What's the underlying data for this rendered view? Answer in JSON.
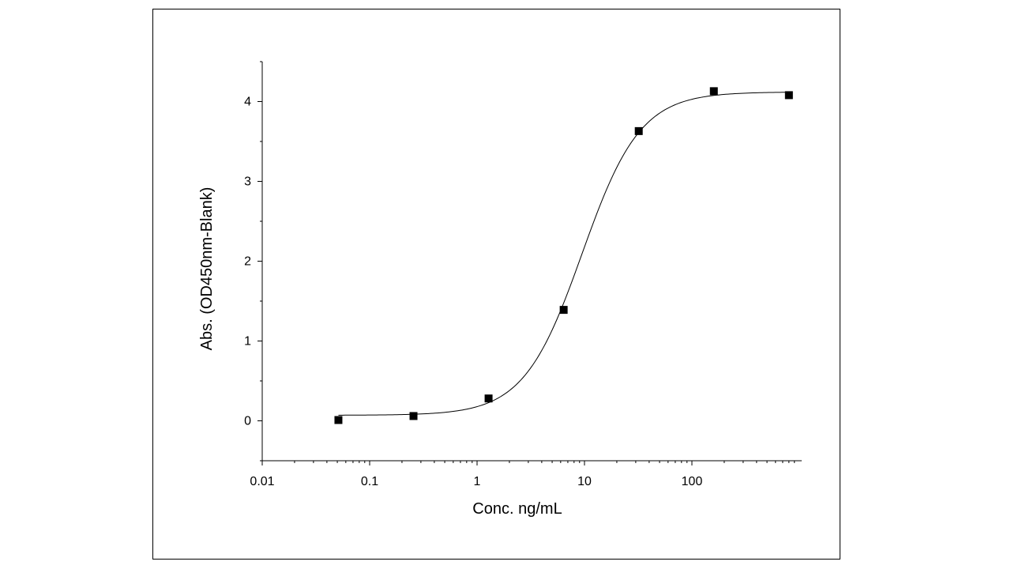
{
  "chart_data": {
    "type": "scatter",
    "xlabel": "Conc. ng/mL",
    "ylabel": "Abs. (OD450nm-Blank)",
    "xscale": "log",
    "xlim": [
      0.01,
      1000
    ],
    "ylim": [
      -0.5,
      4.5
    ],
    "xticks": [
      {
        "value": 0.01,
        "label": "0.01"
      },
      {
        "value": 0.1,
        "label": "0.1"
      },
      {
        "value": 1,
        "label": "1"
      },
      {
        "value": 10,
        "label": "10"
      },
      {
        "value": 100,
        "label": "100"
      }
    ],
    "yticks": [
      {
        "value": 0,
        "label": "0"
      },
      {
        "value": 1,
        "label": "1"
      },
      {
        "value": 2,
        "label": "2"
      },
      {
        "value": 3,
        "label": "3"
      },
      {
        "value": 4,
        "label": "4"
      }
    ],
    "grid": false,
    "marker": "square",
    "points": [
      {
        "x": 0.0512,
        "y": 0.01
      },
      {
        "x": 0.256,
        "y": 0.06
      },
      {
        "x": 1.28,
        "y": 0.28
      },
      {
        "x": 6.4,
        "y": 1.39
      },
      {
        "x": 32,
        "y": 3.63
      },
      {
        "x": 160,
        "y": 4.13
      },
      {
        "x": 800,
        "y": 4.08
      }
    ],
    "fit": {
      "type": "4PL",
      "bottom": 0.07,
      "top": 4.12,
      "ec50": 9.5,
      "hill": 1.6,
      "x_range": [
        0.0512,
        800
      ]
    },
    "colors": {
      "marker": "#000000",
      "line": "#000000",
      "frame": "#000000"
    }
  }
}
